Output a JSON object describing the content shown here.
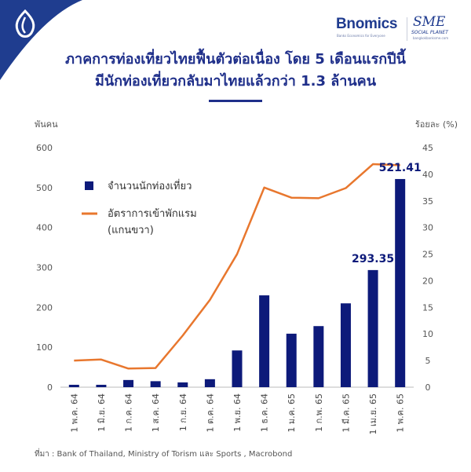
{
  "header": {
    "title_line1": "ภาคการท่องเที่ยวไทยฟื้นตัวต่อเนื่อง โดย 5 เดือนแรกปีนี้",
    "title_line2": "มีนักท่องเที่ยวกลับมาไทยแล้วกว่า 1.3 ล้านคน"
  },
  "brand": {
    "bnomics": "Bnomics",
    "bnomics_sub": "Banks Economics for Everyone",
    "sme": "SME",
    "sme_sub": "SOCIAL PLANET",
    "sme_url": "bangkokbanksme.com"
  },
  "source": "ที่มา : Bank of Thailand, Ministry of Torism และ Sports , Macrobond",
  "colors": {
    "bar": "#0d1a7a",
    "line": "#e8772e",
    "title": "#1f2f8a",
    "corner": "#1f3d8f"
  },
  "chart_data": {
    "type": "bar",
    "categories": [
      "1 พ.ค. 64",
      "1 มิ.ย. 64",
      "1 ก.ค. 64",
      "1 ส.ค. 64",
      "1 ก.ย. 64",
      "1 ต.ค. 64",
      "1 พ.ย. 64",
      "1 ธ.ค. 64",
      "1 ม.ค. 65",
      "1 ก.พ. 65",
      "1 มี.ค. 65",
      "1 เม.ย. 65",
      "1 พ.ค. 65"
    ],
    "series": [
      {
        "name": "จำนวนนักท่องเที่ยว",
        "type": "bar",
        "axis": "left",
        "values": [
          6,
          6,
          18,
          15,
          12,
          20,
          92,
          230,
          134,
          153,
          210,
          293.35,
          521.41
        ]
      },
      {
        "name": "อัตราการเข้าพักแรม (แกนขวา)",
        "legend_line1": "อัตราการเข้าพักแรม",
        "legend_line2": "(แกนขวา)",
        "type": "line",
        "axis": "right",
        "values": [
          5.0,
          5.2,
          3.5,
          3.6,
          9.7,
          16.4,
          25.0,
          37.5,
          35.6,
          35.5,
          37.4,
          41.9,
          41.7
        ]
      }
    ],
    "data_labels": [
      {
        "category": "1 เม.ย. 65",
        "text": "293.35"
      },
      {
        "category": "1 พ.ค. 65",
        "text": "521.41"
      }
    ],
    "ylabel_left": "พันคน",
    "ylabel_right": "ร้อยละ (%)",
    "ylim_left": [
      0,
      600
    ],
    "ylim_right": [
      0,
      45
    ],
    "yticks_left": [
      "0",
      "100",
      "200",
      "300",
      "400",
      "500",
      "600"
    ],
    "yticks_right": [
      "0",
      "5",
      "10",
      "15",
      "20",
      "25",
      "30",
      "35",
      "40",
      "45"
    ],
    "grid": false,
    "legend_position": "top-left"
  }
}
